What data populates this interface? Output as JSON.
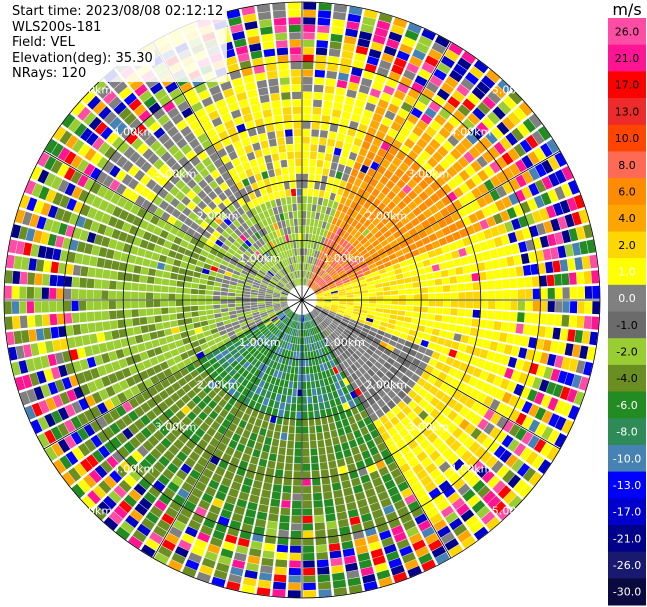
{
  "info": {
    "start_time": "Start time: 2023/08/08 02:12:12",
    "site": "WLS200s-181",
    "field": "Field: VEL",
    "elevation": "Elevation(deg): 35.30",
    "nrays": "NRays: 120"
  },
  "chart_data": {
    "type": "heatmap",
    "subtype": "radar-ppi",
    "title": "Start time: 2023/08/08 02:12:12",
    "nrays": 120,
    "max_range_km": 5,
    "range_rings_km": [
      1,
      2,
      3,
      4,
      5
    ],
    "ring_labels": [
      "1.00km",
      "2.00km",
      "3.00km",
      "4.00km",
      "5.00km"
    ],
    "spokes_deg": [
      0,
      30,
      60,
      90,
      120,
      150,
      180,
      210,
      240,
      270,
      300,
      330
    ],
    "colorbar": {
      "unit": "m/s",
      "ticks": [
        "26.0",
        "21.0",
        "17.0",
        "13.0",
        "10.0",
        "8.0",
        "6.0",
        "4.0",
        "2.0",
        "1.0",
        "0.0",
        "-1.0",
        "-2.0",
        "-4.0",
        "-6.0",
        "-8.0",
        "-10.0",
        "-13.0",
        "-17.0",
        "-21.0",
        "-26.0",
        "-30.0"
      ],
      "colors": [
        "#ff4da6",
        "#ff1493",
        "#ff0000",
        "#ee2b2b",
        "#ff4500",
        "#ff6a55",
        "#ff8c00",
        "#ffa500",
        "#ffd700",
        "#ffff00",
        "#808080",
        "#6b6b6b",
        "#9acd32",
        "#6b8e23",
        "#228b22",
        "#2e8b57",
        "#4682b4",
        "#0000ff",
        "#0000cd",
        "#00008b",
        "#191970",
        "#0a0a40"
      ]
    },
    "sectors": [
      {
        "az_from": 300,
        "az_to": 360,
        "near": "green-yellow",
        "far": "yellow/gray"
      },
      {
        "az_from": 0,
        "az_to": 60,
        "near": "orange",
        "far": "yellow"
      },
      {
        "az_from": 60,
        "az_to": 110,
        "near": "orange",
        "far": "yellow"
      },
      {
        "az_from": 110,
        "az_to": 150,
        "near": "gray",
        "far": "yellow"
      },
      {
        "az_from": 150,
        "az_to": 240,
        "near": "dark green",
        "far": "olive"
      },
      {
        "az_from": 240,
        "az_to": 300,
        "near": "gray",
        "far": "yellow-green"
      }
    ]
  }
}
